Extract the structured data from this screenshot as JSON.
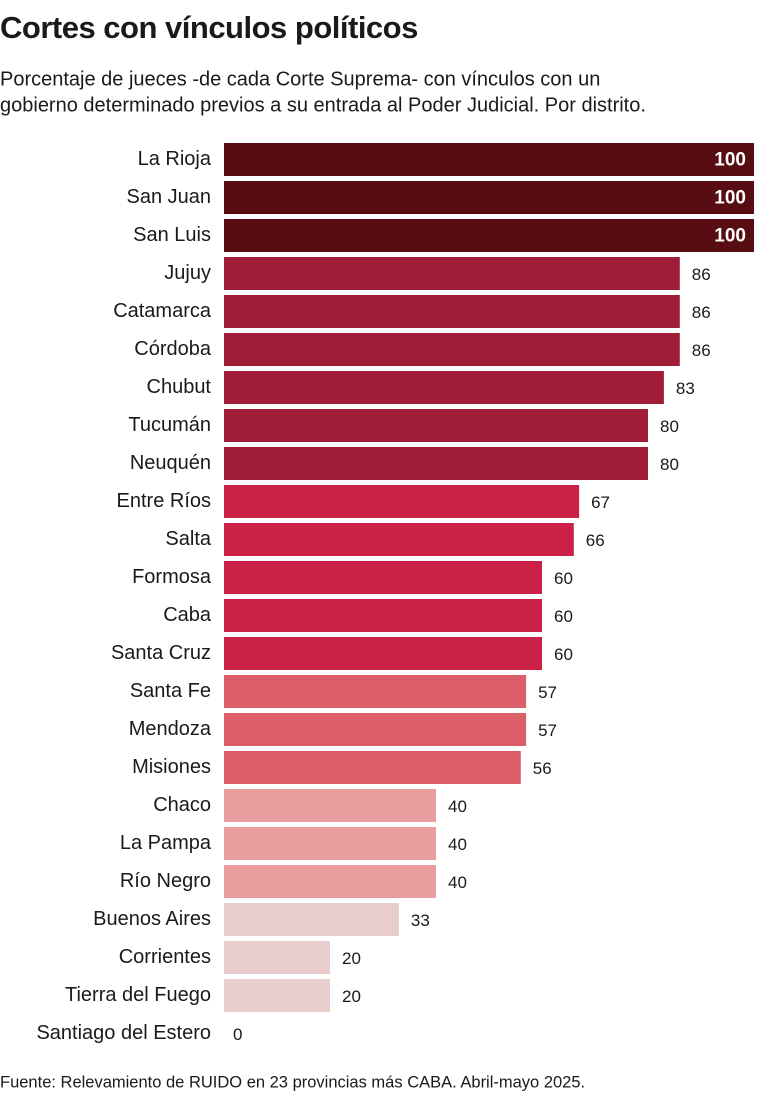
{
  "chart_data": {
    "type": "bar",
    "orientation": "horizontal",
    "title": "Cortes con vínculos políticos",
    "subtitle": [
      "Porcentaje de jueces -de cada Corte Suprema- con vínculos con un",
      "gobierno determinado previos a su entrada al Poder Judicial. Por distrito."
    ],
    "source": "Fuente: Relevamiento de RUIDO en 23 provincias más CABA. Abril-mayo 2025.",
    "categories": [
      "La Rioja",
      "San Juan",
      "San Luis",
      "Jujuy",
      "Catamarca",
      "Córdoba",
      "Chubut",
      "Tucumán",
      "Neuquén",
      "Entre Ríos",
      "Salta",
      "Formosa",
      "Caba",
      "Santa Cruz",
      "Santa Fe",
      "Mendoza",
      "Misiones",
      "Chaco",
      "La Pampa",
      "Río Negro",
      "Buenos Aires",
      "Corrientes",
      "Tierra del Fuego",
      "Santiago del Estero"
    ],
    "values": [
      100,
      100,
      100,
      86,
      86,
      86,
      83,
      80,
      80,
      67,
      66,
      60,
      60,
      60,
      57,
      57,
      56,
      40,
      40,
      40,
      33,
      20,
      20,
      0
    ],
    "colors": [
      "#570d11",
      "#570d11",
      "#570d11",
      "#a11d37",
      "#a11d37",
      "#a11d37",
      "#a11d37",
      "#a11d37",
      "#a11d37",
      "#cc2147",
      "#cc2147",
      "#cc2147",
      "#cc2147",
      "#cc2147",
      "#dc5e69",
      "#dc5e69",
      "#dc5e69",
      "#e89c9e",
      "#e89c9e",
      "#e89c9e",
      "#e9cdcd",
      "#e9cdcd",
      "#e9cdcd",
      "#e9cdcd"
    ],
    "xlim": [
      0,
      100
    ],
    "grid": false
  }
}
